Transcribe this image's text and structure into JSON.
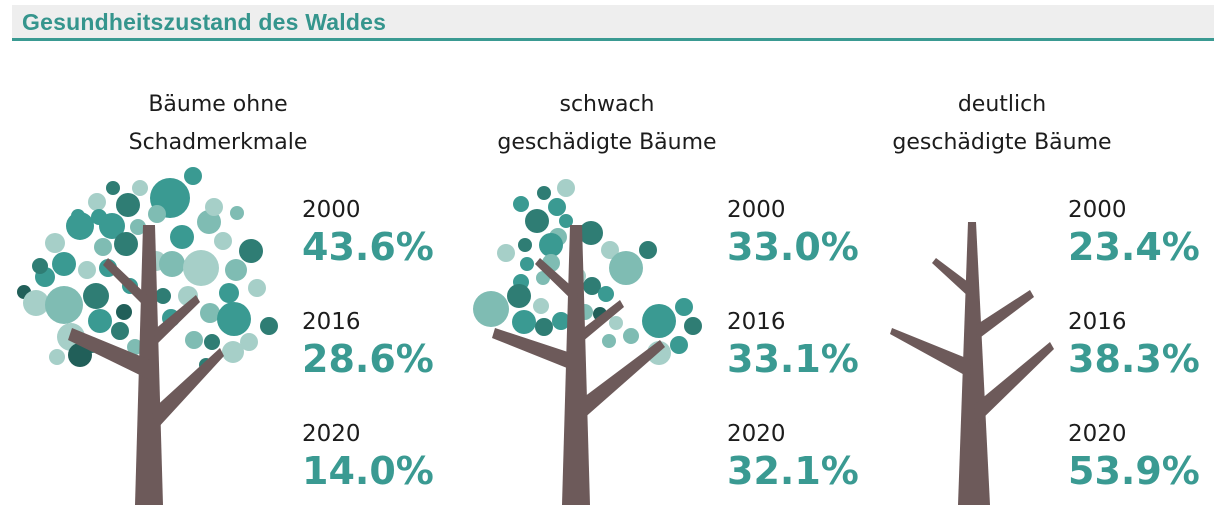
{
  "header": {
    "title": "Gesundheitszustand des Waldes"
  },
  "colors": {
    "accent": "#3a9a92",
    "trunk": "#6d5a5a",
    "leaf_palette": [
      "#3a9a92",
      "#2f7d74",
      "#7fbcb3",
      "#a6cfc8",
      "#215f59"
    ]
  },
  "chart_data": {
    "type": "table",
    "title": "Gesundheitszustand des Waldes",
    "categories": [
      "Bäume ohne Schadmerkmale",
      "schwach geschädigte Bäume",
      "deutlich geschädigte Bäume"
    ],
    "years": [
      "2000",
      "2016",
      "2020"
    ],
    "series": [
      {
        "name": "Bäume ohne Schadmerkmale",
        "title_lines": [
          "Bäume ohne",
          "Schadmerkmale"
        ],
        "icon": "full-tree-icon",
        "values": [
          43.6,
          28.6,
          14.0
        ],
        "labels": [
          "43.6%",
          "28.6%",
          "14.0%"
        ]
      },
      {
        "name": "schwach geschädigte Bäume",
        "title_lines": [
          "schwach",
          "geschädigte Bäume"
        ],
        "icon": "sparse-tree-icon",
        "values": [
          33.0,
          33.1,
          32.1
        ],
        "labels": [
          "33.0%",
          "33.1%",
          "32.1%"
        ]
      },
      {
        "name": "deutlich geschädigte Bäume",
        "title_lines": [
          "deutlich",
          "geschädigte Bäume"
        ],
        "icon": "bare-tree-icon",
        "values": [
          23.4,
          38.3,
          53.9
        ],
        "labels": [
          "23.4%",
          "38.3%",
          "53.9%"
        ]
      }
    ]
  }
}
